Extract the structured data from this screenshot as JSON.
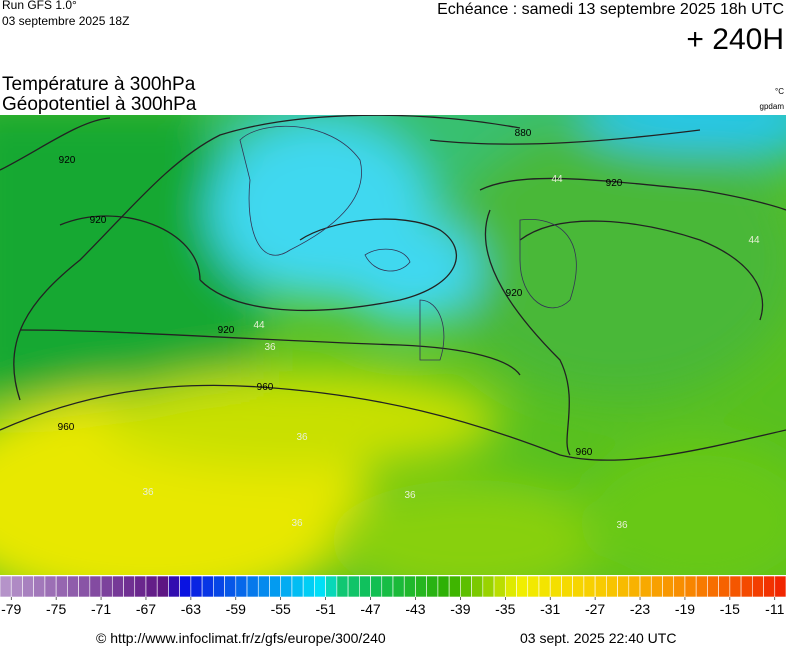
{
  "header": {
    "run": "Run GFS 1.0°",
    "run_date": "03 septembre 2025 18Z",
    "valid": "Echéance : samedi 13 septembre 2025 18h UTC",
    "lead": "+ 240H"
  },
  "map": {
    "title_lines": [
      "Température à 300hPa",
      "Géopotentiel à 300hPa"
    ],
    "units": [
      "°C",
      "gpdam"
    ],
    "contour_labels": [
      "920",
      "920",
      "920",
      "920",
      "920",
      "880",
      "960",
      "960",
      "960",
      "44",
      "44",
      "44",
      "36",
      "36",
      "36",
      "36",
      "36",
      "36"
    ]
  },
  "colorbar": {
    "range": [
      -80,
      -10
    ],
    "ticks": [
      -79,
      -75,
      -71,
      -67,
      -63,
      -59,
      -55,
      -51,
      -47,
      -43,
      -39,
      -35,
      -31,
      -27,
      -23,
      -19,
      -15,
      -11
    ],
    "stops": [
      [
        -80,
        "#b898cc"
      ],
      [
        -65,
        "#5a1080"
      ],
      [
        -64,
        "#0a0ae0"
      ],
      [
        -51,
        "#00e8f8"
      ],
      [
        -50,
        "#10c878"
      ],
      [
        -47,
        "#10c058"
      ],
      [
        -40,
        "#30b000"
      ],
      [
        -36,
        "#a8d800"
      ],
      [
        -34,
        "#f0f000"
      ],
      [
        -26,
        "#f8c800"
      ],
      [
        -18,
        "#f88000"
      ],
      [
        -10,
        "#f02000"
      ]
    ]
  },
  "footer": {
    "source": "© http://www.infoclimat.fr/z/gfs/europe/300/240",
    "generated": "03 sept. 2025 22:40 UTC"
  }
}
